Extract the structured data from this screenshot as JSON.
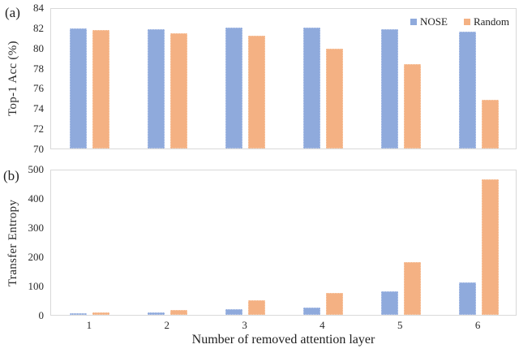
{
  "figure": {
    "panel_a_label": "(a)",
    "panel_b_label": "(b)",
    "x_axis_title": "Number of removed attention layer",
    "text_color": "#1f1f1f",
    "plot_border_color": "#d9d9d9"
  },
  "legend": {
    "position": "top-right-of-panel-a",
    "items": [
      {
        "label": "NOSE",
        "color": "#8FAADC"
      },
      {
        "label": "Random",
        "color": "#F4B183"
      }
    ]
  },
  "chart_data": [
    {
      "type": "bar",
      "panel": "a",
      "ylabel": "Top-1 Acc (%)",
      "xlabel": "",
      "categories": [
        "1",
        "2",
        "3",
        "4",
        "5",
        "6"
      ],
      "series": [
        {
          "name": "NOSE",
          "color": "#8FAADC",
          "values": [
            81.9,
            81.85,
            81.95,
            82.0,
            81.85,
            81.6
          ]
        },
        {
          "name": "Random",
          "color": "#F4B183",
          "values": [
            81.75,
            81.45,
            81.2,
            79.9,
            78.4,
            74.8
          ]
        }
      ],
      "ylim": [
        70,
        84
      ],
      "yticks": [
        70,
        72,
        74,
        76,
        78,
        80,
        82,
        84
      ],
      "grid": false,
      "legend_position": "top-right"
    },
    {
      "type": "bar",
      "panel": "b",
      "ylabel": "Transfer Entropy",
      "xlabel": "Number of removed attention layer",
      "categories": [
        "1",
        "2",
        "3",
        "4",
        "5",
        "6"
      ],
      "series": [
        {
          "name": "NOSE",
          "color": "#8FAADC",
          "values": [
            5,
            7,
            20,
            25,
            80,
            110
          ]
        },
        {
          "name": "Random",
          "color": "#F4B183",
          "values": [
            8,
            16,
            50,
            75,
            180,
            465
          ]
        }
      ],
      "ylim": [
        0,
        500
      ],
      "yticks": [
        0,
        100,
        200,
        300,
        400,
        500
      ],
      "grid": false,
      "legend_position": "none"
    }
  ]
}
